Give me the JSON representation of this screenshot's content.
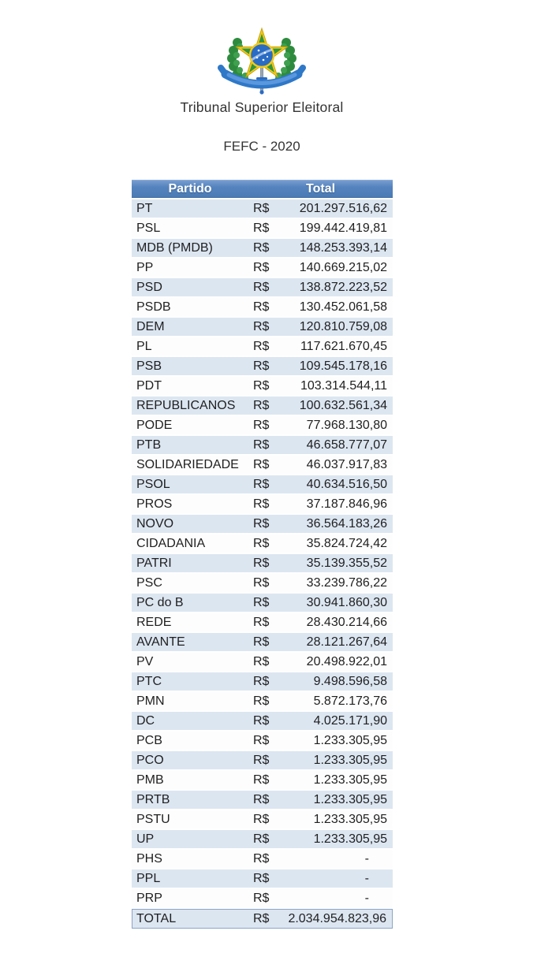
{
  "page": {
    "org_name": "Tribunal Superior Eleitoral",
    "subtitle": "FEFC - 2020",
    "emblem_icon": "brazil-coat-of-arms"
  },
  "colors": {
    "header_blue": "#4f81bd",
    "band_blue": "#dce6f1",
    "row_white": "#fdfdfd",
    "header_text": "#ffffff",
    "body_text": "#1f1f1f",
    "emblem_green": "#2e8b3e",
    "emblem_yellow": "#f3c917",
    "emblem_blue": "#2a6cc4"
  },
  "table": {
    "headers": {
      "party": "Partido",
      "total": "Total"
    },
    "currency_symbol": "R$",
    "rows": [
      {
        "party": "PT",
        "amount": "201.297.516,62"
      },
      {
        "party": "PSL",
        "amount": "199.442.419,81"
      },
      {
        "party": "MDB (PMDB)",
        "amount": "148.253.393,14"
      },
      {
        "party": "PP",
        "amount": "140.669.215,02"
      },
      {
        "party": "PSD",
        "amount": "138.872.223,52"
      },
      {
        "party": "PSDB",
        "amount": "130.452.061,58"
      },
      {
        "party": "DEM",
        "amount": "120.810.759,08"
      },
      {
        "party": "PL",
        "amount": "117.621.670,45"
      },
      {
        "party": "PSB",
        "amount": "109.545.178,16"
      },
      {
        "party": "PDT",
        "amount": "103.314.544,11"
      },
      {
        "party": "REPUBLICANOS",
        "amount": "100.632.561,34"
      },
      {
        "party": "PODE",
        "amount": "77.968.130,80"
      },
      {
        "party": "PTB",
        "amount": "46.658.777,07"
      },
      {
        "party": "SOLIDARIEDADE",
        "amount": "46.037.917,83"
      },
      {
        "party": "PSOL",
        "amount": "40.634.516,50"
      },
      {
        "party": "PROS",
        "amount": "37.187.846,96"
      },
      {
        "party": "NOVO",
        "amount": "36.564.183,26"
      },
      {
        "party": "CIDADANIA",
        "amount": "35.824.724,42"
      },
      {
        "party": "PATRI",
        "amount": "35.139.355,52"
      },
      {
        "party": "PSC",
        "amount": "33.239.786,22"
      },
      {
        "party": "PC do B",
        "amount": "30.941.860,30"
      },
      {
        "party": "REDE",
        "amount": "28.430.214,66"
      },
      {
        "party": "AVANTE",
        "amount": "28.121.267,64"
      },
      {
        "party": "PV",
        "amount": "20.498.922,01"
      },
      {
        "party": "PTC",
        "amount": "9.498.596,58"
      },
      {
        "party": "PMN",
        "amount": "5.872.173,76"
      },
      {
        "party": "DC",
        "amount": "4.025.171,90"
      },
      {
        "party": "PCB",
        "amount": "1.233.305,95"
      },
      {
        "party": "PCO",
        "amount": "1.233.305,95"
      },
      {
        "party": "PMB",
        "amount": "1.233.305,95"
      },
      {
        "party": "PRTB",
        "amount": "1.233.305,95"
      },
      {
        "party": "PSTU",
        "amount": "1.233.305,95"
      },
      {
        "party": "UP",
        "amount": "1.233.305,95"
      },
      {
        "party": "PHS",
        "amount": "-"
      },
      {
        "party": "PPL",
        "amount": "-"
      },
      {
        "party": "PRP",
        "amount": "-"
      }
    ],
    "total_row": {
      "party": "TOTAL",
      "amount": "2.034.954.823,96"
    }
  }
}
